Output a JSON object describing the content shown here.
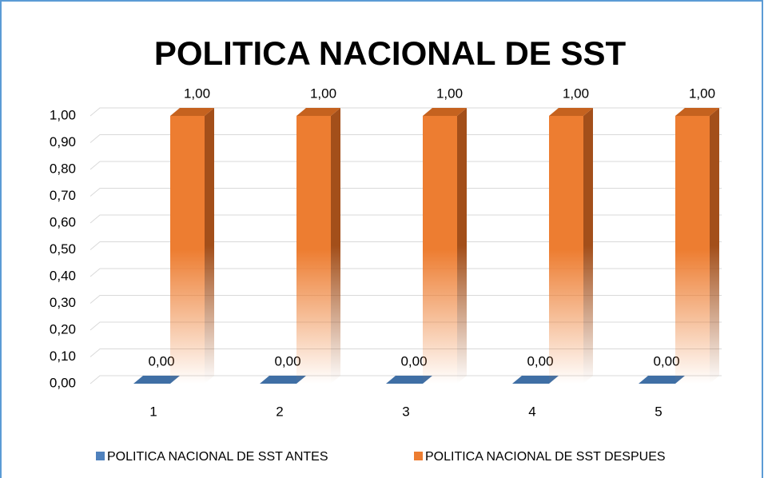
{
  "chart_data": {
    "type": "bar3d",
    "title": "POLITICA  NACIONAL  DE  SST",
    "categories": [
      "1",
      "2",
      "3",
      "4",
      "5"
    ],
    "series": [
      {
        "name": "POLITICA NACIONAL DE SST ANTES",
        "color": "#4f81bd",
        "values": [
          0,
          0,
          0,
          0,
          0
        ],
        "value_labels": [
          "0,00",
          "0,00",
          "0,00",
          "0,00",
          "0,00"
        ]
      },
      {
        "name": "POLITICA NACIONAL DE SST DESPUES",
        "color": "#ed7d31",
        "values": [
          1,
          1,
          1,
          1,
          1
        ],
        "value_labels": [
          "1,00",
          "1,00",
          "1,00",
          "1,00",
          "1,00"
        ]
      }
    ],
    "ylim": [
      0,
      1
    ],
    "yticks": [
      {
        "value": 0,
        "label": "0,00"
      },
      {
        "value": 0.1,
        "label": "0,10"
      },
      {
        "value": 0.2,
        "label": "0,20"
      },
      {
        "value": 0.3,
        "label": "0,30"
      },
      {
        "value": 0.4,
        "label": "0,40"
      },
      {
        "value": 0.5,
        "label": "0,50"
      },
      {
        "value": 0.6,
        "label": "0,60"
      },
      {
        "value": 0.7,
        "label": "0,70"
      },
      {
        "value": 0.8,
        "label": "0,80"
      },
      {
        "value": 0.9,
        "label": "0,90"
      },
      {
        "value": 1,
        "label": "1,00"
      }
    ],
    "grid": true,
    "legend": "bottom"
  }
}
